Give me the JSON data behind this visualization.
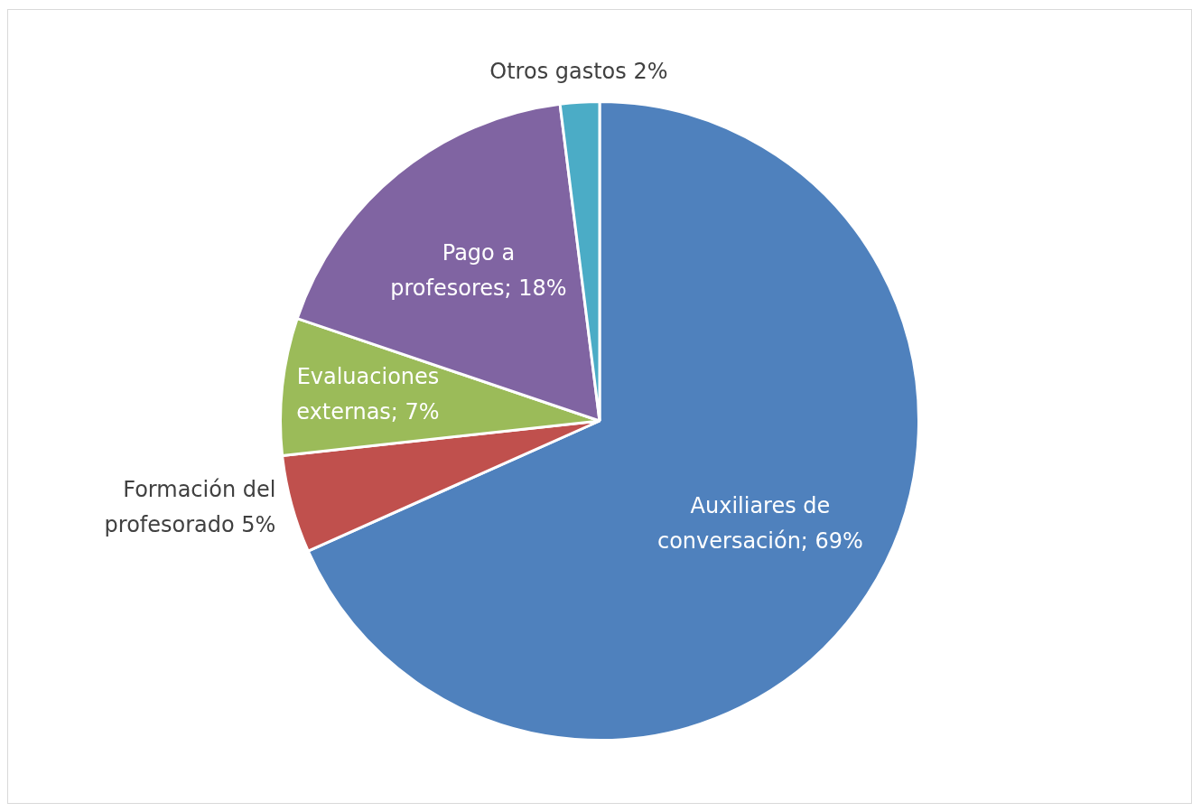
{
  "chart_data": {
    "type": "pie",
    "categories": [
      "Auxiliares de conversación",
      "Formación del profesorado",
      "Evaluaciones externas",
      "Pago a profesores",
      "Otros gastos"
    ],
    "values": [
      69,
      5,
      7,
      18,
      2
    ],
    "colors": [
      "#4f81bd",
      "#c0504d",
      "#9bbb59",
      "#8064a2",
      "#4bacc6"
    ],
    "value_labels": [
      "69%",
      "5%",
      "7%",
      "18%",
      "2%"
    ]
  }
}
